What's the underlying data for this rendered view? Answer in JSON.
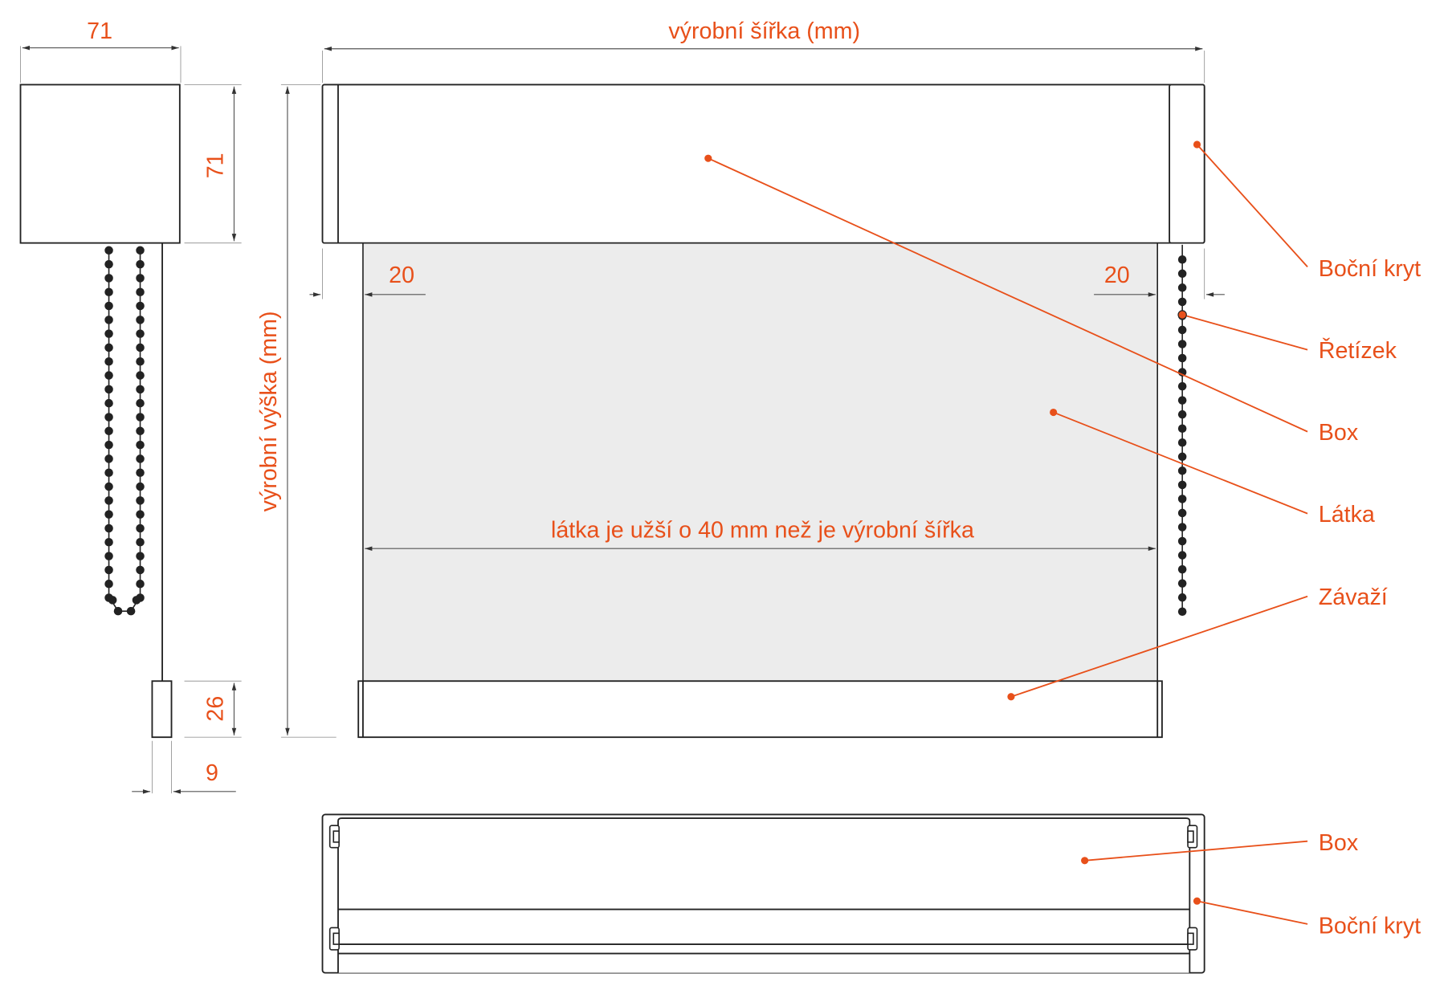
{
  "colors": {
    "accent": "#e8501a",
    "fabric": "#ececec",
    "line": "#222222"
  },
  "dimensions": {
    "box_width": "71",
    "box_height": "71",
    "weight_height": "26",
    "weight_width": "9",
    "production_width": "výrobní šířka (mm)",
    "production_height": "výrobní výška (mm)",
    "left_offset": "20",
    "right_offset": "20",
    "fabric_note": "látka je užší o 40 mm než je výrobní šířka"
  },
  "labels": {
    "side_cover": "Boční kryt",
    "chain": "Řetízek",
    "box": "Box",
    "fabric": "Látka",
    "weight": "Závaží",
    "box_bottom": "Box",
    "side_cover_bottom": "Boční kryt"
  }
}
